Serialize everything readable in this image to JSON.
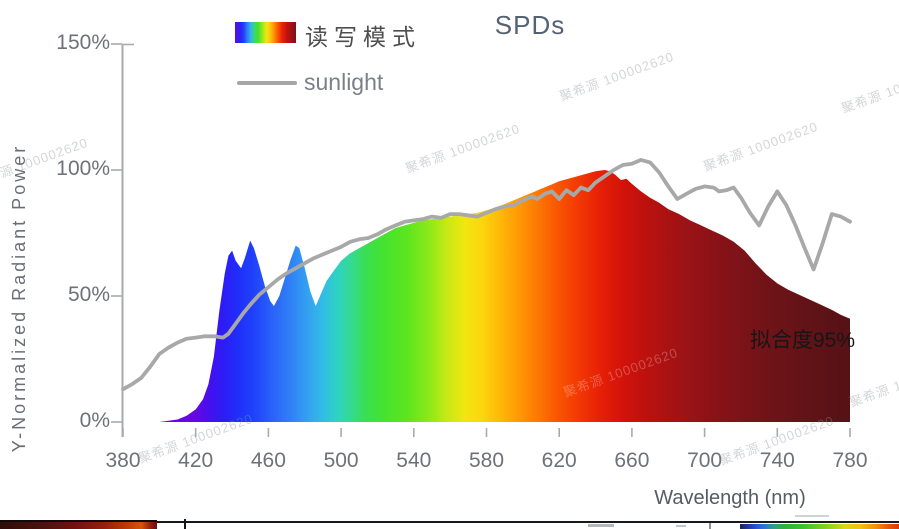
{
  "chart": {
    "title": "SPDs",
    "y_axis": {
      "label": "Y-Normalized Radiant Power",
      "tick_labels": [
        "150%",
        "100%",
        "50%",
        "0%"
      ],
      "tick_values": [
        150,
        100,
        50,
        0
      ]
    },
    "x_axis": {
      "label": "Wavelength (nm)",
      "tick_labels": [
        "380",
        "420",
        "460",
        "500",
        "540",
        "580",
        "620",
        "660",
        "700",
        "740",
        "780"
      ],
      "tick_values": [
        380,
        420,
        460,
        500,
        540,
        580,
        620,
        660,
        700,
        740,
        780
      ]
    },
    "legend": [
      {
        "label": "读写模式",
        "swatch": "spectrum-gradient"
      },
      {
        "label": "sunlight",
        "swatch": "gray-line",
        "color": "#a8a8a8"
      }
    ],
    "annotation": "拟合度95%",
    "watermark_text": "聚希源 100002620"
  },
  "chart_data": {
    "type": "area",
    "title": "SPDs",
    "xlabel": "Wavelength (nm)",
    "ylabel": "Y-Normalized Radiant Power",
    "xlim": [
      380,
      780
    ],
    "ylim": [
      0,
      150
    ],
    "y_unit": "percent",
    "grid": false,
    "legend_position": "top-left",
    "series": [
      {
        "name": "读写模式",
        "type": "area",
        "fill": "spectrum-gradient",
        "points": [
          [
            380,
            0
          ],
          [
            400,
            0
          ],
          [
            405,
            0.5
          ],
          [
            410,
            1
          ],
          [
            415,
            2.5
          ],
          [
            420,
            5
          ],
          [
            424,
            9
          ],
          [
            427,
            15
          ],
          [
            430,
            26
          ],
          [
            433,
            44
          ],
          [
            436,
            59
          ],
          [
            438,
            66
          ],
          [
            440,
            68
          ],
          [
            442,
            64
          ],
          [
            445,
            61
          ],
          [
            447,
            65
          ],
          [
            450,
            72
          ],
          [
            452,
            69
          ],
          [
            455,
            62
          ],
          [
            458,
            54
          ],
          [
            461,
            48
          ],
          [
            463,
            46
          ],
          [
            466,
            50
          ],
          [
            469,
            57
          ],
          [
            472,
            64
          ],
          [
            475,
            70
          ],
          [
            477,
            69
          ],
          [
            480,
            61
          ],
          [
            483,
            52
          ],
          [
            486,
            46
          ],
          [
            489,
            51
          ],
          [
            492,
            56
          ],
          [
            496,
            60
          ],
          [
            500,
            64
          ],
          [
            505,
            67
          ],
          [
            510,
            69
          ],
          [
            515,
            71
          ],
          [
            520,
            73
          ],
          [
            525,
            75
          ],
          [
            530,
            77
          ],
          [
            535,
            78
          ],
          [
            540,
            79
          ],
          [
            545,
            80
          ],
          [
            550,
            80.5
          ],
          [
            555,
            81
          ],
          [
            560,
            81.5
          ],
          [
            565,
            82
          ],
          [
            570,
            82.5
          ],
          [
            575,
            83
          ],
          [
            580,
            84
          ],
          [
            585,
            85
          ],
          [
            590,
            86.5
          ],
          [
            595,
            88
          ],
          [
            600,
            89.5
          ],
          [
            605,
            91
          ],
          [
            610,
            92.5
          ],
          [
            615,
            94
          ],
          [
            620,
            95.5
          ],
          [
            625,
            96.5
          ],
          [
            630,
            97.5
          ],
          [
            635,
            98.5
          ],
          [
            640,
            99.5
          ],
          [
            645,
            100
          ],
          [
            648,
            99.5
          ],
          [
            651,
            98
          ],
          [
            654,
            96
          ],
          [
            657,
            96.5
          ],
          [
            660,
            94.5
          ],
          [
            665,
            91.5
          ],
          [
            670,
            89
          ],
          [
            675,
            87
          ],
          [
            680,
            84.5
          ],
          [
            686,
            82.5
          ],
          [
            692,
            80
          ],
          [
            698,
            78
          ],
          [
            704,
            76
          ],
          [
            710,
            74
          ],
          [
            716,
            71.5
          ],
          [
            722,
            68
          ],
          [
            728,
            63
          ],
          [
            734,
            58.5
          ],
          [
            740,
            55
          ],
          [
            746,
            52.5
          ],
          [
            752,
            50.5
          ],
          [
            758,
            48.5
          ],
          [
            764,
            46.5
          ],
          [
            770,
            44.5
          ],
          [
            775,
            42.5
          ],
          [
            780,
            41
          ]
        ]
      },
      {
        "name": "sunlight",
        "type": "line",
        "color": "#a8a8a8",
        "points": [
          [
            380,
            13
          ],
          [
            385,
            15
          ],
          [
            390,
            17.5
          ],
          [
            395,
            22
          ],
          [
            400,
            27
          ],
          [
            405,
            29.5
          ],
          [
            410,
            31.5
          ],
          [
            415,
            33
          ],
          [
            420,
            33.5
          ],
          [
            425,
            34
          ],
          [
            430,
            34
          ],
          [
            435,
            33.5
          ],
          [
            438,
            35
          ],
          [
            442,
            39
          ],
          [
            446,
            43
          ],
          [
            450,
            46.5
          ],
          [
            455,
            50.5
          ],
          [
            460,
            53.5
          ],
          [
            465,
            56.5
          ],
          [
            470,
            59
          ],
          [
            475,
            61
          ],
          [
            480,
            63
          ],
          [
            485,
            65
          ],
          [
            490,
            66.5
          ],
          [
            495,
            68
          ],
          [
            500,
            69.5
          ],
          [
            505,
            71.5
          ],
          [
            510,
            72.5
          ],
          [
            515,
            73
          ],
          [
            520,
            74.5
          ],
          [
            525,
            76.5
          ],
          [
            530,
            78
          ],
          [
            535,
            79.5
          ],
          [
            540,
            80
          ],
          [
            545,
            80.5
          ],
          [
            550,
            81.5
          ],
          [
            555,
            81
          ],
          [
            560,
            82.5
          ],
          [
            565,
            82.5
          ],
          [
            570,
            82
          ],
          [
            575,
            81.5
          ],
          [
            580,
            83
          ],
          [
            585,
            84.5
          ],
          [
            590,
            85.5
          ],
          [
            595,
            86
          ],
          [
            600,
            88
          ],
          [
            605,
            89.5
          ],
          [
            608,
            88.5
          ],
          [
            612,
            90.5
          ],
          [
            616,
            91.5
          ],
          [
            620,
            88.5
          ],
          [
            624,
            92
          ],
          [
            628,
            90
          ],
          [
            632,
            93
          ],
          [
            636,
            92
          ],
          [
            640,
            95
          ],
          [
            645,
            97.5
          ],
          [
            650,
            100
          ],
          [
            655,
            102
          ],
          [
            660,
            102.5
          ],
          [
            665,
            104
          ],
          [
            670,
            103
          ],
          [
            675,
            99
          ],
          [
            680,
            93.5
          ],
          [
            685,
            88.5
          ],
          [
            690,
            90.5
          ],
          [
            695,
            92.5
          ],
          [
            700,
            93.5
          ],
          [
            705,
            93
          ],
          [
            708,
            91.5
          ],
          [
            712,
            92
          ],
          [
            716,
            93
          ],
          [
            720,
            89
          ],
          [
            725,
            83
          ],
          [
            730,
            78
          ],
          [
            735,
            85.5
          ],
          [
            740,
            91.5
          ],
          [
            745,
            86
          ],
          [
            750,
            78
          ],
          [
            755,
            69
          ],
          [
            760,
            60.5
          ],
          [
            765,
            71
          ],
          [
            770,
            82.5
          ],
          [
            775,
            81.5
          ],
          [
            780,
            79.5
          ]
        ]
      }
    ],
    "gradient_stops": [
      [
        420,
        "#6608e2"
      ],
      [
        428,
        "#4310ee"
      ],
      [
        436,
        "#2b1ef6"
      ],
      [
        444,
        "#2030fa"
      ],
      [
        452,
        "#1f42fa"
      ],
      [
        462,
        "#2a62f8"
      ],
      [
        472,
        "#2f80f5"
      ],
      [
        482,
        "#34a2f0"
      ],
      [
        490,
        "#32bce6"
      ],
      [
        498,
        "#2fd2c2"
      ],
      [
        506,
        "#35da8c"
      ],
      [
        514,
        "#3adf4f"
      ],
      [
        524,
        "#46e32e"
      ],
      [
        536,
        "#5ce520"
      ],
      [
        548,
        "#8ae81b"
      ],
      [
        558,
        "#c6e915"
      ],
      [
        568,
        "#f0e711"
      ],
      [
        578,
        "#fbd50d"
      ],
      [
        588,
        "#fdb708"
      ],
      [
        598,
        "#fe9805"
      ],
      [
        608,
        "#fd7903"
      ],
      [
        618,
        "#f95902"
      ],
      [
        630,
        "#f33a03"
      ],
      [
        642,
        "#e72106"
      ],
      [
        654,
        "#d4130a"
      ],
      [
        666,
        "#bf110d"
      ],
      [
        678,
        "#ac1212"
      ],
      [
        692,
        "#991316"
      ],
      [
        706,
        "#8a1217"
      ],
      [
        722,
        "#7a1318"
      ],
      [
        740,
        "#6c1318"
      ],
      [
        760,
        "#601317"
      ],
      [
        780,
        "#551216"
      ]
    ],
    "annotations": [
      {
        "text": "拟合度95%",
        "x": 740,
        "y": 38
      }
    ]
  },
  "colors": {
    "background": "#ffffff",
    "title_text": "#556273",
    "axis_text": "#6e7278",
    "axis_line": "#a7abb0",
    "sunlight_line": "#a8a8a8",
    "legend_text": "#4e4e4e",
    "sunlight_label_text": "#7a8088",
    "annotation_text": "#161616"
  }
}
